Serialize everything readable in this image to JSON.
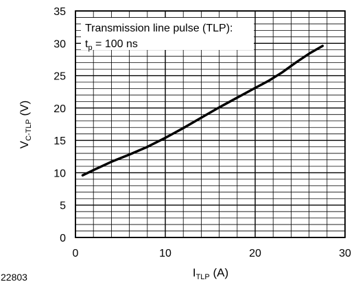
{
  "chart_data": {
    "type": "line",
    "x": [
      0.8,
      2.0,
      4.0,
      6.0,
      8.0,
      10.0,
      12.0,
      14.0,
      16.0,
      18.0,
      20.0,
      21.5,
      23.0,
      24.5,
      26.0,
      27.5
    ],
    "series": [
      {
        "values": [
          9.6,
          10.4,
          11.7,
          12.8,
          14.0,
          15.4,
          16.9,
          18.5,
          20.1,
          21.6,
          23.1,
          24.2,
          25.5,
          27.0,
          28.4,
          29.6
        ]
      }
    ],
    "xlim": [
      0,
      30
    ],
    "ylim": [
      0,
      35
    ],
    "xticks": [
      0,
      10,
      20,
      30
    ],
    "yticks": [
      0,
      5,
      10,
      15,
      20,
      25,
      30,
      35
    ],
    "grid": true,
    "grid_minor": {
      "x_step": 2,
      "y_step": 1
    },
    "colors": {
      "line": "#000000",
      "grid": "#000000",
      "background": "#ffffff"
    },
    "xlabel": {
      "main": "I",
      "sub": "TLP",
      "unit": "(A)"
    },
    "ylabel": {
      "main": "V",
      "sub": "C-TLP",
      "unit": "(V)"
    },
    "annotation": {
      "line1": "Transmission line pulse (TLP):",
      "line2_main": "t",
      "line2_sub": "p",
      "line2_rest": " = 100 ns"
    },
    "figure_id": "22803"
  }
}
